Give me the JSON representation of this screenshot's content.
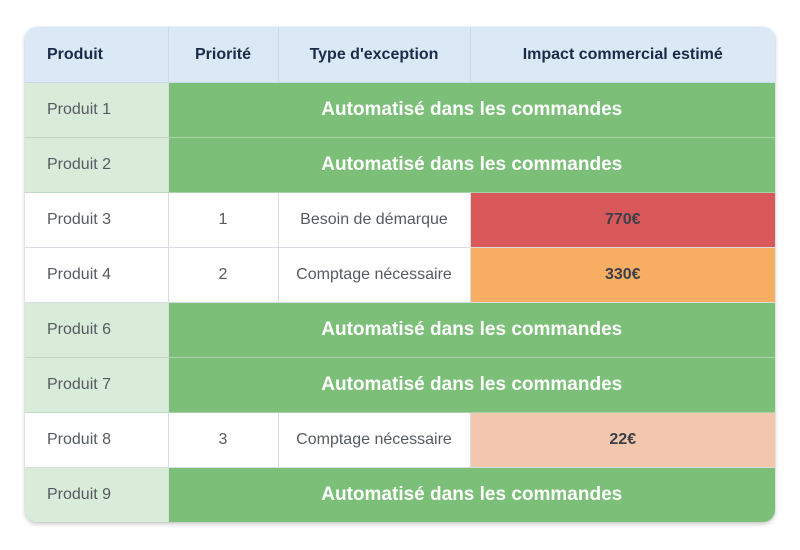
{
  "table": {
    "headers": {
      "product": "Produit",
      "priority": "Priorité",
      "exception_type": "Type d'exception",
      "impact": "Impact commercial estimé"
    },
    "colors": {
      "header_bg": "#dbe9f6",
      "automated_bg": "#7bbf78",
      "automated_product_bg": "#d9ecd9",
      "impact_high": "#d9585a",
      "impact_medium": "#f7ae62",
      "impact_low": "#f3c6ae"
    },
    "rows": [
      {
        "product": "Produit 1",
        "automated": true,
        "automated_label": "Automatisé dans les commandes"
      },
      {
        "product": "Produit 2",
        "automated": true,
        "automated_label": "Automatisé dans les commandes"
      },
      {
        "product": "Produit 3",
        "automated": false,
        "priority": "1",
        "exception_type": "Besoin de démarque",
        "impact": "770€",
        "impact_color": "#d9585a"
      },
      {
        "product": "Produit 4",
        "automated": false,
        "priority": "2",
        "exception_type": "Comptage nécessaire",
        "impact": "330€",
        "impact_color": "#f7ae62"
      },
      {
        "product": "Produit 6",
        "automated": true,
        "automated_label": "Automatisé dans les commandes"
      },
      {
        "product": "Produit 7",
        "automated": true,
        "automated_label": "Automatisé dans les commandes"
      },
      {
        "product": "Produit 8",
        "automated": false,
        "priority": "3",
        "exception_type": "Comptage nécessaire",
        "impact": "22€",
        "impact_color": "#f3c6ae"
      },
      {
        "product": "Produit 9",
        "automated": true,
        "automated_label": "Automatisé dans les commandes"
      }
    ]
  }
}
